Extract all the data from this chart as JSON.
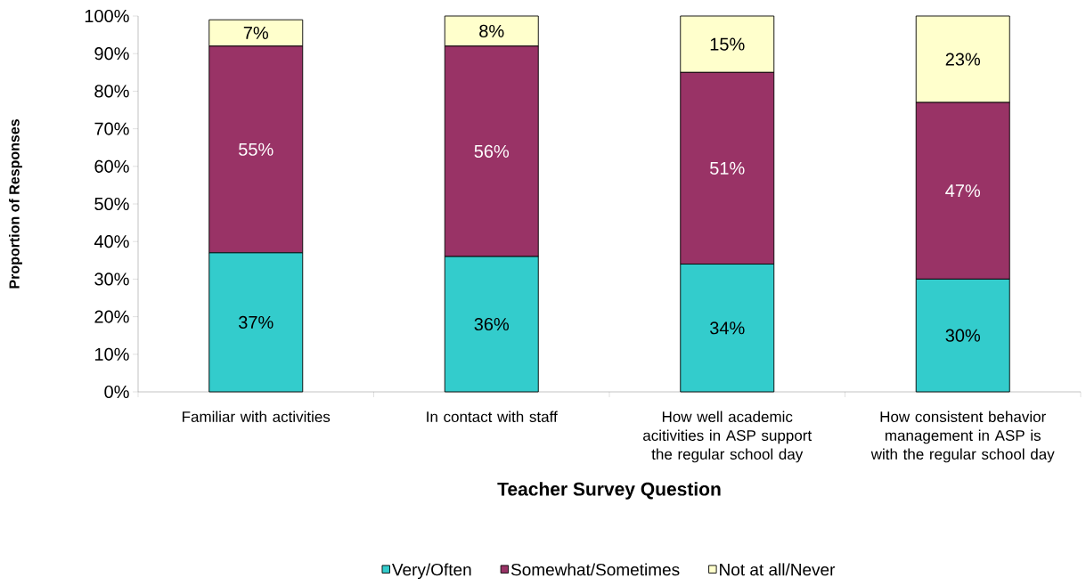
{
  "chart_data": {
    "type": "bar",
    "stacked": true,
    "xlabel": "Teacher Survey Question",
    "ylabel": "Proportion of Responses",
    "categories": [
      "Familiar with activities",
      "In contact with staff",
      "How well academic acitivities in ASP support the regular school day",
      "How consistent behavior management in ASP is with the regular school day"
    ],
    "series": [
      {
        "name": "Very/Often",
        "color": "#33cccc",
        "values": [
          37,
          36,
          34,
          30
        ],
        "value_labels": [
          "37%",
          "36%",
          "34%",
          "30%"
        ]
      },
      {
        "name": "Somewhat/Sometimes",
        "color": "#993366",
        "values": [
          55,
          56,
          51,
          47
        ],
        "value_labels": [
          "55%",
          "56%",
          "51%",
          "47%"
        ]
      },
      {
        "name": "Not at all/Never",
        "color": "#ffffcc",
        "values": [
          7,
          8,
          15,
          23
        ],
        "value_labels": [
          "7%",
          "8%",
          "15%",
          "23%"
        ]
      }
    ],
    "ylim": [
      0,
      100
    ],
    "yticks": [
      {
        "value": 0,
        "label": "0%"
      },
      {
        "value": 10,
        "label": "10%"
      },
      {
        "value": 20,
        "label": "20%"
      },
      {
        "value": 30,
        "label": "30%"
      },
      {
        "value": 40,
        "label": "40%"
      },
      {
        "value": 50,
        "label": "50%"
      },
      {
        "value": 60,
        "label": "60%"
      },
      {
        "value": 70,
        "label": "70%"
      },
      {
        "value": 80,
        "label": "80%"
      },
      {
        "value": 90,
        "label": "90%"
      },
      {
        "value": 100,
        "label": "100%"
      }
    ],
    "grid": false,
    "legend": "bottom"
  }
}
